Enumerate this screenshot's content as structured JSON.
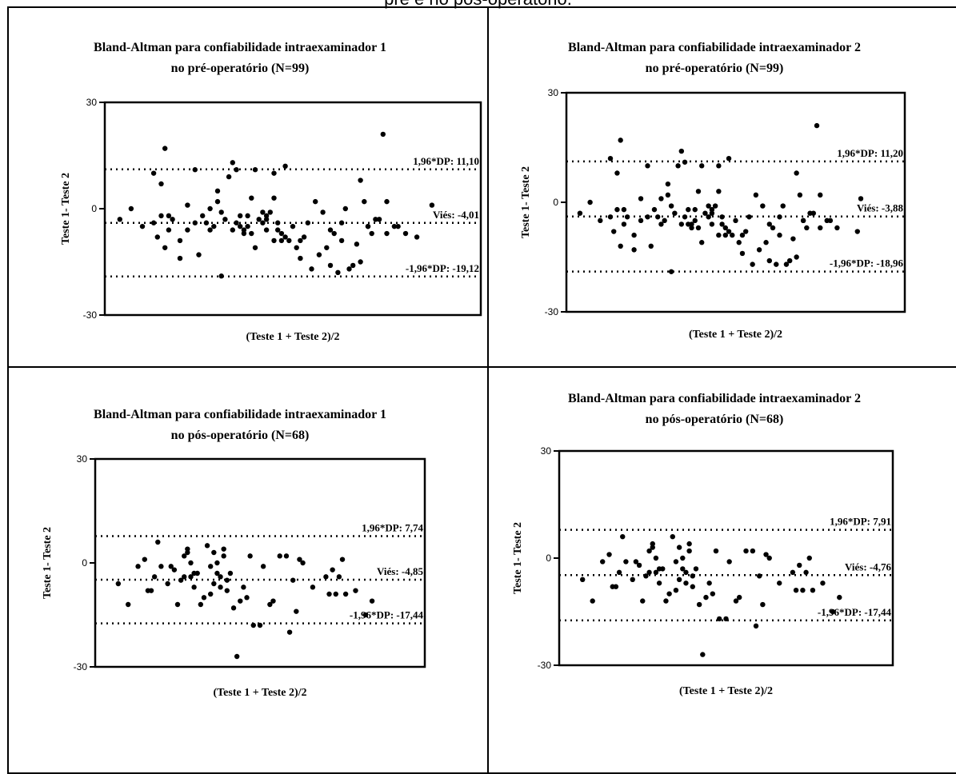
{
  "caption": "pré e no pós-operatório.",
  "chart_data": [
    {
      "type": "scatter",
      "title": "Bland-Altman para confiabilidade intraexaminador 1",
      "subtitle": "no pré-operatório (N=99)",
      "xlabel": "(Teste 1 + Teste 2)/2",
      "ylabel": "Teste 1- Teste  2",
      "ylim": [
        -30,
        30
      ],
      "yticks": [
        "30",
        "0",
        "-30"
      ],
      "grid": false,
      "lines": [
        {
          "label": "1,96*DP: 11,10",
          "y": 11.1
        },
        {
          "label": "Viés: -4,01",
          "y": -4.01
        },
        {
          "label": "-1,96*DP: -19,12",
          "y": -19.12
        }
      ],
      "points": [
        [
          0.04,
          -3
        ],
        [
          0.07,
          0
        ],
        [
          0.1,
          -5
        ],
        [
          0.13,
          -4
        ],
        [
          0.14,
          -8
        ],
        [
          0.13,
          10
        ],
        [
          0.15,
          -2
        ],
        [
          0.15,
          7
        ],
        [
          0.16,
          -11
        ],
        [
          0.17,
          -6
        ],
        [
          0.17,
          -2
        ],
        [
          0.18,
          -3
        ],
        [
          0.2,
          -9
        ],
        [
          0.22,
          -6
        ],
        [
          0.22,
          1
        ],
        [
          0.24,
          -4
        ],
        [
          0.24,
          11
        ],
        [
          0.25,
          -13
        ],
        [
          0.26,
          -2
        ],
        [
          0.27,
          -4
        ],
        [
          0.28,
          -6
        ],
        [
          0.28,
          0
        ],
        [
          0.3,
          2
        ],
        [
          0.3,
          5
        ],
        [
          0.31,
          -1
        ],
        [
          0.32,
          -3
        ],
        [
          0.33,
          9
        ],
        [
          0.34,
          -6
        ],
        [
          0.34,
          13
        ],
        [
          0.35,
          -4
        ],
        [
          0.35,
          11
        ],
        [
          0.36,
          -5
        ],
        [
          0.36,
          -2
        ],
        [
          0.37,
          -7
        ],
        [
          0.37,
          -6
        ],
        [
          0.38,
          -2
        ],
        [
          0.38,
          -5
        ],
        [
          0.39,
          3
        ],
        [
          0.4,
          -11
        ],
        [
          0.4,
          11
        ],
        [
          0.41,
          -3
        ],
        [
          0.42,
          -4
        ],
        [
          0.42,
          -1
        ],
        [
          0.43,
          -2
        ],
        [
          0.43,
          -6
        ],
        [
          0.44,
          -1
        ],
        [
          0.45,
          -9
        ],
        [
          0.45,
          3
        ],
        [
          0.46,
          -6
        ],
        [
          0.46,
          -4
        ],
        [
          0.47,
          -9
        ],
        [
          0.47,
          -7
        ],
        [
          0.48,
          -8
        ],
        [
          0.49,
          -9
        ],
        [
          0.5,
          -5
        ],
        [
          0.51,
          -11
        ],
        [
          0.52,
          -9
        ],
        [
          0.53,
          -8
        ],
        [
          0.54,
          -4
        ],
        [
          0.55,
          -17
        ],
        [
          0.56,
          2
        ],
        [
          0.58,
          -1
        ],
        [
          0.59,
          -11
        ],
        [
          0.6,
          -6
        ],
        [
          0.61,
          -7
        ],
        [
          0.62,
          -18
        ],
        [
          0.63,
          -4
        ],
        [
          0.64,
          0
        ],
        [
          0.65,
          -17
        ],
        [
          0.66,
          -16
        ],
        [
          0.67,
          -10
        ],
        [
          0.68,
          -15
        ],
        [
          0.68,
          8
        ],
        [
          0.69,
          2
        ],
        [
          0.7,
          -5
        ],
        [
          0.71,
          -7
        ],
        [
          0.72,
          -3
        ],
        [
          0.73,
          -3
        ],
        [
          0.74,
          21
        ],
        [
          0.75,
          -7
        ],
        [
          0.75,
          2
        ],
        [
          0.77,
          -5
        ],
        [
          0.78,
          -5
        ],
        [
          0.8,
          -7
        ],
        [
          0.83,
          -8
        ],
        [
          0.87,
          1
        ],
        [
          0.16,
          17
        ],
        [
          0.45,
          10
        ],
        [
          0.48,
          12
        ],
        [
          0.2,
          -14
        ],
        [
          0.29,
          -5
        ],
        [
          0.31,
          -19
        ],
        [
          0.39,
          -7
        ],
        [
          0.43,
          -3
        ],
        [
          0.52,
          -14
        ],
        [
          0.57,
          -13
        ],
        [
          0.6,
          -16
        ],
        [
          0.63,
          -9
        ],
        [
          0.7,
          -5
        ]
      ]
    },
    {
      "type": "scatter",
      "title": "Bland-Altman para confiabilidade intraexaminador 2",
      "subtitle": "no pré-operatório (N=99)",
      "xlabel": "(Teste 1 + Teste 2)/2",
      "ylabel": "Teste 1- Teste  2",
      "ylim": [
        -30,
        30
      ],
      "yticks": [
        "30",
        "0",
        "-30"
      ],
      "grid": false,
      "lines": [
        {
          "label": "1,96*DP: 11,20",
          "y": 11.2
        },
        {
          "label": "Viés: -3,88",
          "y": -3.88
        },
        {
          "label": "-1,96*DP: -18,96",
          "y": -18.96
        }
      ],
      "points": [
        [
          0.04,
          -3
        ],
        [
          0.07,
          0
        ],
        [
          0.1,
          -5
        ],
        [
          0.13,
          -4
        ],
        [
          0.14,
          -8
        ],
        [
          0.13,
          12
        ],
        [
          0.15,
          -2
        ],
        [
          0.15,
          8
        ],
        [
          0.16,
          -12
        ],
        [
          0.17,
          -6
        ],
        [
          0.17,
          -2
        ],
        [
          0.18,
          -4
        ],
        [
          0.2,
          -9
        ],
        [
          0.22,
          -5
        ],
        [
          0.22,
          1
        ],
        [
          0.24,
          -4
        ],
        [
          0.24,
          10
        ],
        [
          0.25,
          -12
        ],
        [
          0.26,
          -2
        ],
        [
          0.27,
          -4
        ],
        [
          0.28,
          -6
        ],
        [
          0.28,
          1
        ],
        [
          0.3,
          2
        ],
        [
          0.3,
          5
        ],
        [
          0.31,
          -1
        ],
        [
          0.32,
          -3
        ],
        [
          0.33,
          10
        ],
        [
          0.34,
          -6
        ],
        [
          0.34,
          14
        ],
        [
          0.35,
          -4
        ],
        [
          0.35,
          11
        ],
        [
          0.36,
          -6
        ],
        [
          0.36,
          -2
        ],
        [
          0.37,
          -7
        ],
        [
          0.37,
          -6
        ],
        [
          0.38,
          -2
        ],
        [
          0.38,
          -5
        ],
        [
          0.39,
          3
        ],
        [
          0.4,
          -11
        ],
        [
          0.4,
          10
        ],
        [
          0.41,
          -3
        ],
        [
          0.42,
          -4
        ],
        [
          0.42,
          -1
        ],
        [
          0.43,
          -2
        ],
        [
          0.43,
          -6
        ],
        [
          0.44,
          -1
        ],
        [
          0.45,
          -9
        ],
        [
          0.45,
          3
        ],
        [
          0.46,
          -6
        ],
        [
          0.46,
          -4
        ],
        [
          0.47,
          -9
        ],
        [
          0.47,
          -7
        ],
        [
          0.48,
          -8
        ],
        [
          0.49,
          -9
        ],
        [
          0.5,
          -5
        ],
        [
          0.51,
          -11
        ],
        [
          0.52,
          -9
        ],
        [
          0.53,
          -8
        ],
        [
          0.54,
          -4
        ],
        [
          0.55,
          -17
        ],
        [
          0.56,
          2
        ],
        [
          0.58,
          -1
        ],
        [
          0.59,
          -11
        ],
        [
          0.6,
          -6
        ],
        [
          0.61,
          -7
        ],
        [
          0.62,
          -17
        ],
        [
          0.63,
          -4
        ],
        [
          0.64,
          -1
        ],
        [
          0.65,
          -17
        ],
        [
          0.66,
          -16
        ],
        [
          0.67,
          -10
        ],
        [
          0.68,
          -15
        ],
        [
          0.68,
          8
        ],
        [
          0.69,
          2
        ],
        [
          0.7,
          -5
        ],
        [
          0.71,
          -7
        ],
        [
          0.72,
          -3
        ],
        [
          0.73,
          -3
        ],
        [
          0.74,
          21
        ],
        [
          0.75,
          -7
        ],
        [
          0.75,
          2
        ],
        [
          0.77,
          -5
        ],
        [
          0.78,
          -5
        ],
        [
          0.8,
          -7
        ],
        [
          0.86,
          -8
        ],
        [
          0.87,
          1
        ],
        [
          0.16,
          17
        ],
        [
          0.45,
          10
        ],
        [
          0.48,
          12
        ],
        [
          0.2,
          -13
        ],
        [
          0.29,
          -5
        ],
        [
          0.31,
          -19
        ],
        [
          0.39,
          -7
        ],
        [
          0.43,
          -3
        ],
        [
          0.52,
          -14
        ],
        [
          0.57,
          -13
        ],
        [
          0.6,
          -16
        ],
        [
          0.63,
          -9
        ],
        [
          0.7,
          -5
        ]
      ]
    },
    {
      "type": "scatter",
      "title": "Bland-Altman para confiabilidade intraexaminador 1",
      "subtitle": "no pós-operatório (N=68)",
      "xlabel": "(Teste 1 + Teste 2)/2",
      "ylabel": "Teste 1- Teste  2",
      "ylim": [
        -30,
        30
      ],
      "yticks": [
        "30",
        "0",
        "-30"
      ],
      "grid": false,
      "lines": [
        {
          "label": "1,96*DP: 7,74",
          "y": 7.74
        },
        {
          "label": "Viés: -4,85",
          "y": -4.85
        },
        {
          "label": "-1,96*DP: -17,44",
          "y": -17.44
        }
      ],
      "points": [
        [
          0.07,
          -6
        ],
        [
          0.1,
          -12
        ],
        [
          0.13,
          -1
        ],
        [
          0.15,
          1
        ],
        [
          0.16,
          -8
        ],
        [
          0.17,
          -8
        ],
        [
          0.18,
          -4
        ],
        [
          0.19,
          6
        ],
        [
          0.2,
          -1
        ],
        [
          0.22,
          -6
        ],
        [
          0.23,
          -1
        ],
        [
          0.24,
          -2
        ],
        [
          0.25,
          -12
        ],
        [
          0.26,
          -5
        ],
        [
          0.27,
          2
        ],
        [
          0.27,
          -4
        ],
        [
          0.28,
          4
        ],
        [
          0.28,
          3
        ],
        [
          0.29,
          -4
        ],
        [
          0.29,
          0
        ],
        [
          0.3,
          -3
        ],
        [
          0.3,
          -7
        ],
        [
          0.31,
          -3
        ],
        [
          0.32,
          -12
        ],
        [
          0.33,
          -10
        ],
        [
          0.34,
          5
        ],
        [
          0.35,
          -9
        ],
        [
          0.35,
          -1
        ],
        [
          0.36,
          3
        ],
        [
          0.36,
          -6
        ],
        [
          0.37,
          0
        ],
        [
          0.37,
          -3
        ],
        [
          0.38,
          -4
        ],
        [
          0.38,
          -7
        ],
        [
          0.39,
          4
        ],
        [
          0.39,
          2
        ],
        [
          0.4,
          -8
        ],
        [
          0.4,
          -5
        ],
        [
          0.41,
          -3
        ],
        [
          0.42,
          -13
        ],
        [
          0.43,
          -27
        ],
        [
          0.44,
          -11
        ],
        [
          0.45,
          -7
        ],
        [
          0.46,
          -10
        ],
        [
          0.47,
          2
        ],
        [
          0.48,
          -18
        ],
        [
          0.5,
          -18
        ],
        [
          0.51,
          -1
        ],
        [
          0.53,
          -12
        ],
        [
          0.54,
          -11
        ],
        [
          0.56,
          2
        ],
        [
          0.58,
          2
        ],
        [
          0.59,
          -20
        ],
        [
          0.6,
          -5
        ],
        [
          0.61,
          -14
        ],
        [
          0.62,
          1
        ],
        [
          0.63,
          0
        ],
        [
          0.66,
          -7
        ],
        [
          0.7,
          -4
        ],
        [
          0.71,
          -9
        ],
        [
          0.72,
          -2
        ],
        [
          0.73,
          -9
        ],
        [
          0.74,
          -4
        ],
        [
          0.75,
          1
        ],
        [
          0.76,
          -9
        ],
        [
          0.79,
          -8
        ],
        [
          0.82,
          -15
        ],
        [
          0.84,
          -11
        ]
      ]
    },
    {
      "type": "scatter",
      "title": "Bland-Altman para confiabilidade intraexaminador 2",
      "subtitle": "no pós-operatório (N=68)",
      "xlabel": "(Teste 1 + Teste 2)/2",
      "ylabel": "Teste 1- Teste  2",
      "ylim": [
        -30,
        30
      ],
      "yticks": [
        "30",
        "0",
        "-30"
      ],
      "grid": false,
      "lines": [
        {
          "label": "1,96*DP: 7,91",
          "y": 7.91
        },
        {
          "label": "Viés: -4,76",
          "y": -4.76
        },
        {
          "label": "-1,96*DP: -17,44",
          "y": -17.44
        }
      ],
      "points": [
        [
          0.07,
          -6
        ],
        [
          0.1,
          -12
        ],
        [
          0.13,
          -1
        ],
        [
          0.15,
          1
        ],
        [
          0.16,
          -8
        ],
        [
          0.17,
          -8
        ],
        [
          0.18,
          -4
        ],
        [
          0.19,
          6
        ],
        [
          0.2,
          -1
        ],
        [
          0.22,
          -6
        ],
        [
          0.23,
          -1
        ],
        [
          0.24,
          -2
        ],
        [
          0.25,
          -12
        ],
        [
          0.26,
          -5
        ],
        [
          0.27,
          2
        ],
        [
          0.27,
          -4
        ],
        [
          0.28,
          4
        ],
        [
          0.28,
          3
        ],
        [
          0.29,
          -4
        ],
        [
          0.29,
          0
        ],
        [
          0.3,
          -3
        ],
        [
          0.3,
          -7
        ],
        [
          0.31,
          -3
        ],
        [
          0.32,
          -12
        ],
        [
          0.33,
          -10
        ],
        [
          0.34,
          6
        ],
        [
          0.35,
          -9
        ],
        [
          0.35,
          -1
        ],
        [
          0.36,
          3
        ],
        [
          0.36,
          -6
        ],
        [
          0.37,
          0
        ],
        [
          0.37,
          -3
        ],
        [
          0.38,
          -4
        ],
        [
          0.38,
          -7
        ],
        [
          0.39,
          4
        ],
        [
          0.39,
          2
        ],
        [
          0.4,
          -8
        ],
        [
          0.4,
          -5
        ],
        [
          0.41,
          -3
        ],
        [
          0.42,
          -13
        ],
        [
          0.43,
          -27
        ],
        [
          0.44,
          -11
        ],
        [
          0.45,
          -7
        ],
        [
          0.46,
          -10
        ],
        [
          0.47,
          2
        ],
        [
          0.48,
          -17
        ],
        [
          0.5,
          -17
        ],
        [
          0.51,
          -1
        ],
        [
          0.53,
          -12
        ],
        [
          0.54,
          -11
        ],
        [
          0.56,
          2
        ],
        [
          0.58,
          2
        ],
        [
          0.59,
          -19
        ],
        [
          0.6,
          -5
        ],
        [
          0.61,
          -13
        ],
        [
          0.62,
          1
        ],
        [
          0.63,
          0
        ],
        [
          0.66,
          -7
        ],
        [
          0.7,
          -4
        ],
        [
          0.71,
          -9
        ],
        [
          0.72,
          -2
        ],
        [
          0.73,
          -9
        ],
        [
          0.74,
          -4
        ],
        [
          0.75,
          0
        ],
        [
          0.76,
          -9
        ],
        [
          0.79,
          -7
        ],
        [
          0.82,
          -15
        ],
        [
          0.84,
          -11
        ]
      ]
    }
  ]
}
